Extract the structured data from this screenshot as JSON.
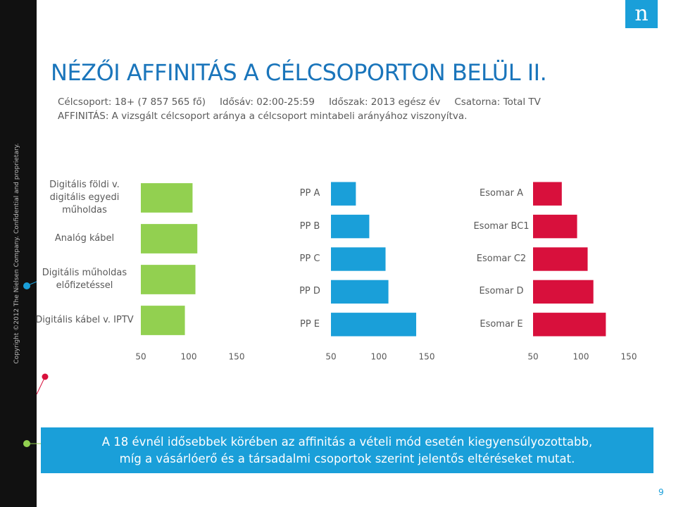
{
  "slide": {
    "title": "NÉZŐI AFFINITÁS A CÉLCSOPORTON BELÜL II.",
    "info": [
      "Célcsoport: 18+ (7 857 565 fő)",
      "Idősáv: 02:00-25:59",
      "Időszak: 2013 egész év",
      "Csatorna: Total TV"
    ],
    "definition": "AFFINITÁS: A vizsgált célcsoport aránya a célcsoport mintabeli arányához viszonyítva.",
    "copyright": "Copyright ©2012 The Nielsen Company. Confidential and proprietary.",
    "footer": [
      "A 18 évnél idősebbek körében az affinitás a vételi mód esetén kiegyensúlyozottabb,",
      "míg a vásárlóerő és a társadalmi csoportok szerint jelentős eltéréseket mutat."
    ],
    "page_number": "9",
    "logo": "n"
  },
  "chart_data": [
    {
      "type": "bar",
      "orientation": "horizontal",
      "categories": [
        "Digitális földi v. digitális egyedi műholdas",
        "Analóg kábel",
        "Digitális műholdas előfizetéssel",
        "Digitális kábel v. IPTV"
      ],
      "values": [
        104,
        109,
        107,
        96
      ],
      "color": "#92d050",
      "xlim": [
        50,
        150
      ],
      "xticks": [
        50,
        100,
        150
      ]
    },
    {
      "type": "bar",
      "orientation": "horizontal",
      "categories": [
        "PP A",
        "PP B",
        "PP C",
        "PP D",
        "PP E"
      ],
      "values": [
        76,
        90,
        107,
        110,
        139
      ],
      "color": "#1a9fd9",
      "xlim": [
        50,
        150
      ],
      "xticks": [
        50,
        100,
        150
      ]
    },
    {
      "type": "bar",
      "orientation": "horizontal",
      "categories": [
        "Esomar A",
        "Esomar BC1",
        "Esomar C2",
        "Esomar D",
        "Esomar E"
      ],
      "values": [
        80,
        96,
        107,
        113,
        126
      ],
      "color": "#d8103c",
      "xlim": [
        50,
        150
      ],
      "xticks": [
        50,
        100,
        150
      ]
    }
  ]
}
